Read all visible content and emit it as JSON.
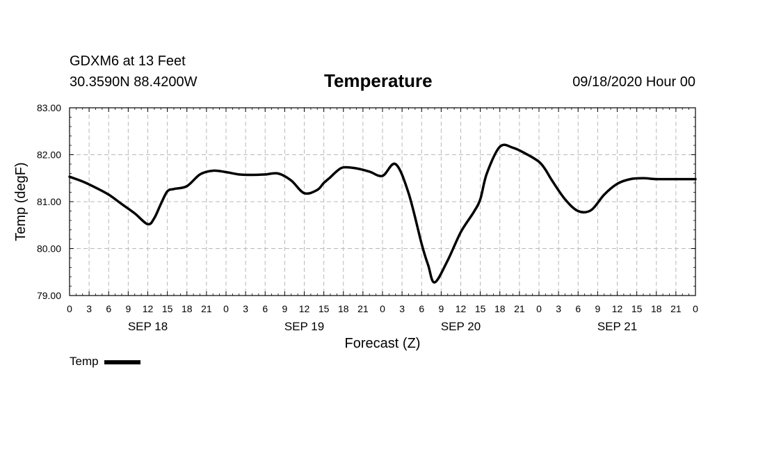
{
  "header": {
    "station": "GDXM6 at 13 Feet",
    "coords": "30.3590N 88.4200W",
    "title": "Temperature",
    "valid": "09/18/2020 Hour 00"
  },
  "legend": {
    "label": "Temp"
  },
  "chart_data": {
    "type": "line",
    "title": "Temperature",
    "xlabel": "Forecast (Z)",
    "ylabel": "Temp (degF)",
    "ylim": [
      79,
      83
    ],
    "yticks": [
      "79.00",
      "80.00",
      "81.00",
      "82.00",
      "83.00"
    ],
    "xlim": [
      0,
      96
    ],
    "xtick_labels": [
      "0",
      "3",
      "6",
      "9",
      "12",
      "15",
      "18",
      "21",
      "0",
      "3",
      "6",
      "9",
      "12",
      "15",
      "18",
      "21",
      "0",
      "3",
      "6",
      "9",
      "12",
      "15",
      "18",
      "21",
      "0",
      "3",
      "6",
      "9",
      "12",
      "15",
      "18",
      "21",
      "0"
    ],
    "day_labels": [
      {
        "label": "SEP 18",
        "hour": 12
      },
      {
        "label": "SEP 19",
        "hour": 36
      },
      {
        "label": "SEP 20",
        "hour": 60
      },
      {
        "label": "SEP 21",
        "hour": 84
      }
    ],
    "grid": true,
    "legend_position": "bottom-left",
    "series": [
      {
        "name": "Temp",
        "color": "#000000",
        "x": [
          0,
          2,
          4,
          6,
          8,
          10,
          12,
          13,
          14,
          15,
          16,
          18,
          20,
          22,
          24,
          26,
          28,
          30,
          32,
          34,
          36,
          38,
          39,
          40,
          41,
          42,
          44,
          46,
          48,
          50,
          52,
          54,
          55,
          56,
          58,
          60,
          62,
          63,
          64,
          66,
          68,
          70,
          72,
          73,
          74,
          76,
          78,
          80,
          82,
          84,
          86,
          88,
          90,
          92,
          94,
          96
        ],
        "y": [
          81.53,
          81.43,
          81.3,
          81.15,
          80.95,
          80.75,
          80.52,
          80.65,
          80.95,
          81.22,
          81.27,
          81.33,
          81.58,
          81.66,
          81.63,
          81.58,
          81.57,
          81.58,
          81.6,
          81.45,
          81.18,
          81.25,
          81.4,
          81.52,
          81.65,
          81.73,
          81.71,
          81.64,
          81.55,
          81.8,
          81.18,
          80.1,
          79.65,
          79.28,
          79.75,
          80.35,
          80.78,
          81.05,
          81.6,
          82.17,
          82.15,
          82.02,
          81.85,
          81.68,
          81.45,
          81.05,
          80.8,
          80.82,
          81.15,
          81.38,
          81.48,
          81.5,
          81.48,
          81.48,
          81.48,
          81.48
        ]
      }
    ]
  }
}
